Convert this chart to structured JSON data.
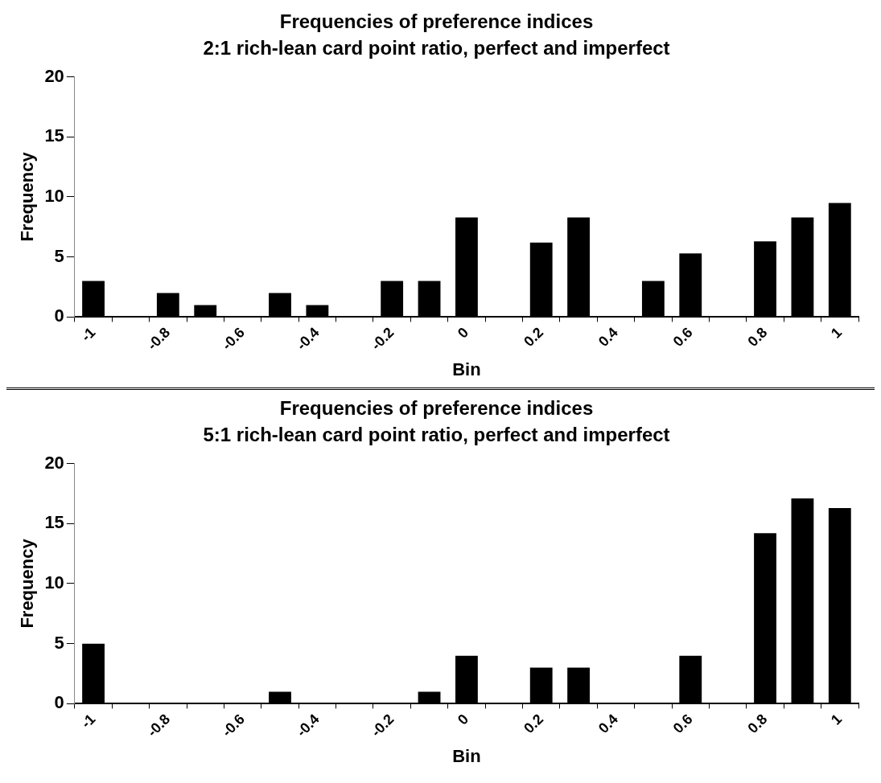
{
  "chart_data": [
    {
      "type": "bar",
      "title": "Frequencies of preference indices",
      "subtitle": "2:1 rich-lean card point ratio, perfect and imperfect",
      "xlabel": "Bin",
      "ylabel": "Frequency",
      "categories": [
        "-1",
        null,
        "-0.8",
        null,
        "-0.6",
        null,
        "-0.4",
        null,
        "-0.2",
        null,
        "0",
        null,
        "0.2",
        null,
        "0.4",
        null,
        "0.6",
        null,
        "0.8",
        null,
        "1"
      ],
      "values": [
        3,
        0,
        2,
        1,
        0,
        2,
        1,
        0,
        3,
        3,
        8.3,
        0,
        6.2,
        8.3,
        0,
        3,
        5.3,
        0,
        6.3,
        8.3,
        9.5
      ],
      "color": "#000000",
      "ylim": [
        0,
        20
      ],
      "yticks": [
        0,
        5,
        10,
        15,
        20
      ],
      "grid": false,
      "legend": false
    },
    {
      "type": "bar",
      "title": "Frequencies of preference indices",
      "subtitle": "5:1 rich-lean card point ratio, perfect and imperfect",
      "xlabel": "Bin",
      "ylabel": "Frequency",
      "categories": [
        "-1",
        null,
        "-0.8",
        null,
        "-0.6",
        null,
        "-0.4",
        null,
        "-0.2",
        null,
        "0",
        null,
        "0.2",
        null,
        "0.4",
        null,
        "0.6",
        null,
        "0.8",
        null,
        "1"
      ],
      "values": [
        5,
        0,
        0,
        0,
        0,
        1,
        0,
        0,
        0,
        1,
        4,
        0,
        3,
        3,
        0,
        0,
        4,
        0,
        14.2,
        17.1,
        16.3
      ],
      "color": "#000000",
      "ylim": [
        0,
        20
      ],
      "yticks": [
        0,
        5,
        10,
        15,
        20
      ],
      "grid": false,
      "legend": false
    }
  ]
}
